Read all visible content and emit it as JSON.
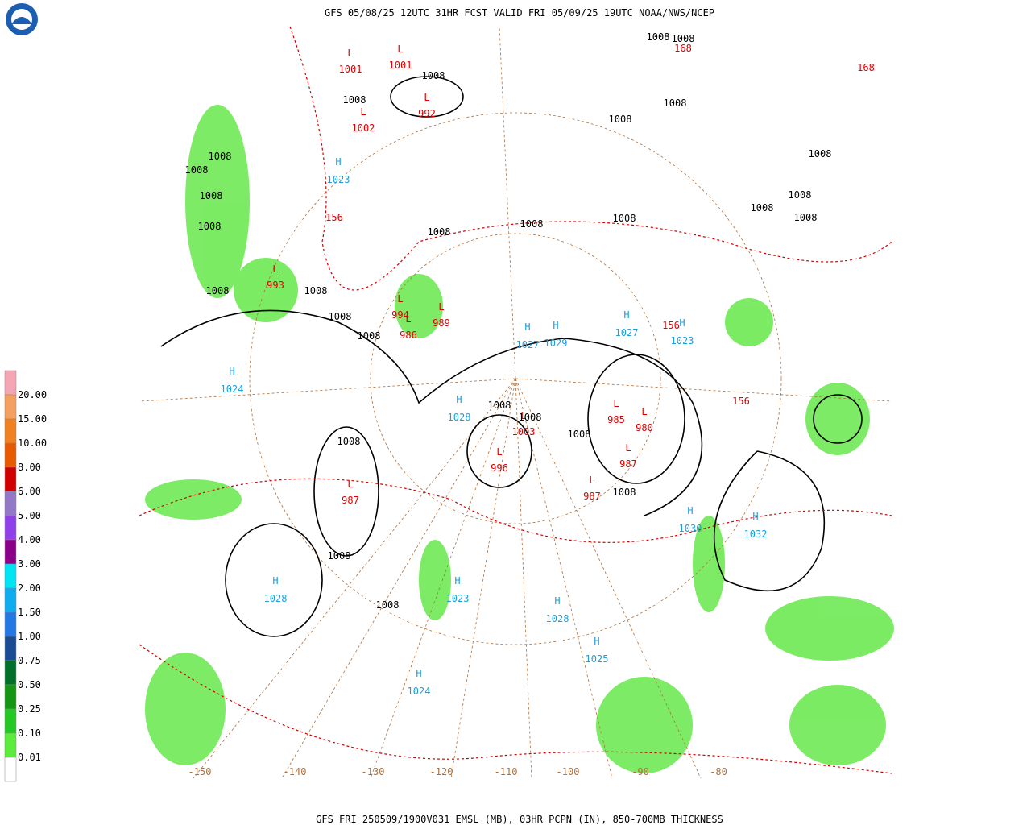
{
  "header": {
    "title": "GFS 05/08/25 12UTC 31HR FCST VALID FRI 05/09/25 19UTC NOAA/NWS/NCEP"
  },
  "footer": {
    "caption": "GFS FRI 250509/1900V031 EMSL (MB), 03HR PCPN (IN), 850-700MB THICKNESS"
  },
  "legend": {
    "labels": [
      "20.00",
      "15.00",
      "10.00",
      "8.00",
      "6.00",
      "5.00",
      "4.00",
      "3.00",
      "2.00",
      "1.50",
      "1.00",
      "0.75",
      "0.50",
      "0.25",
      "0.10",
      "0.01"
    ],
    "colors": [
      "#f4a6b4",
      "#f4a060",
      "#f08020",
      "#e85a00",
      "#d00000",
      "#9478c8",
      "#9040e8",
      "#8a0088",
      "#00e4f4",
      "#10acf0",
      "#2478e4",
      "#1a4c94",
      "#00702a",
      "#149614",
      "#24c824",
      "#5cec3c",
      "#ffffff"
    ]
  },
  "map": {
    "high_letter": "H",
    "low_letter": "L",
    "highs": [
      "1023",
      "1029",
      "1027",
      "1023",
      "1028",
      "1030",
      "1032",
      "1028",
      "1023",
      "1028",
      "1025",
      "1024",
      "1024",
      "1027"
    ],
    "lows": [
      "1001",
      "1001",
      "992",
      "1002",
      "993",
      "994",
      "986",
      "989",
      "996",
      "987",
      "985",
      "980",
      "987",
      "987",
      "1003"
    ],
    "isobar_labels": [
      "1008",
      "1008",
      "1008",
      "1008",
      "1008",
      "1008",
      "1008",
      "1008",
      "1008",
      "1008",
      "1008",
      "1008",
      "1008",
      "1008",
      "1008",
      "1008",
      "1008",
      "1008",
      "1008",
      "1008",
      "1008",
      "1008",
      "1008",
      "1008",
      "1008",
      "1008",
      "1008",
      "1008"
    ],
    "thickness_labels": [
      "168",
      "168",
      "156",
      "156",
      "156"
    ],
    "longitude_labels": [
      "-150",
      "-140",
      "-130",
      "-120",
      "-110",
      "-100",
      "-90",
      "-80"
    ]
  }
}
